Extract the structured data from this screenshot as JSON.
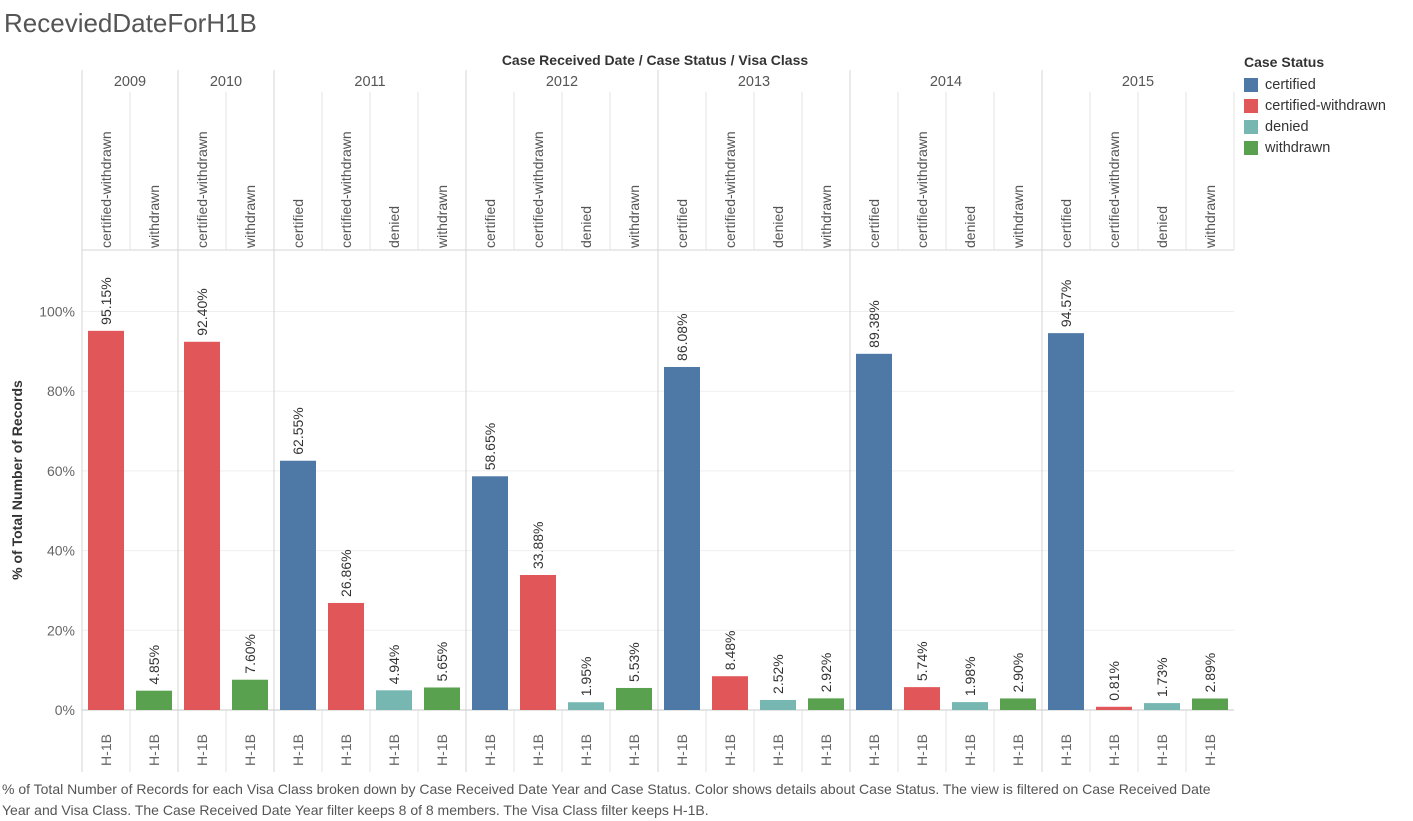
{
  "title": "ReceviedDateForH1B",
  "colors": {
    "certified": "#4e79a7",
    "certified-withdrawn": "#e15759",
    "denied": "#76b7b2",
    "withdrawn": "#59a14f"
  },
  "legend": {
    "title": "Case Status",
    "items": [
      {
        "label": "certified",
        "color": "#4e79a7"
      },
      {
        "label": "certified-withdrawn",
        "color": "#e15759"
      },
      {
        "label": "denied",
        "color": "#76b7b2"
      },
      {
        "label": "withdrawn",
        "color": "#59a14f"
      }
    ]
  },
  "caption": "% of Total Number of Records for each Visa Class broken down by Case Received Date Year and Case Status.  Color shows details about Case Status. The view is filtered on Case Received Date Year and Visa Class. The Case Received Date Year filter keeps 8 of 8 members. The Visa Class filter keeps H-1B.",
  "chart_data": {
    "type": "bar",
    "header_title": "Case Received Date  /  Case Status  /  Visa Class",
    "ylabel": "% of Total Number of Records",
    "ylim": [
      0,
      115
    ],
    "yticks": [
      0,
      20,
      40,
      60,
      80,
      100
    ],
    "ytick_labels": [
      "0%",
      "20%",
      "40%",
      "60%",
      "80%",
      "100%"
    ],
    "grid": true,
    "legend_position": "top-right",
    "groups": [
      {
        "year": "2009",
        "bars": [
          {
            "status": "certified-withdrawn",
            "visa": "H-1B",
            "value": 95.15,
            "label": "95.15%"
          },
          {
            "status": "withdrawn",
            "visa": "H-1B",
            "value": 4.85,
            "label": "4.85%"
          }
        ]
      },
      {
        "year": "2010",
        "bars": [
          {
            "status": "certified-withdrawn",
            "visa": "H-1B",
            "value": 92.4,
            "label": "92.40%"
          },
          {
            "status": "withdrawn",
            "visa": "H-1B",
            "value": 7.6,
            "label": "7.60%"
          }
        ]
      },
      {
        "year": "2011",
        "bars": [
          {
            "status": "certified",
            "visa": "H-1B",
            "value": 62.55,
            "label": "62.55%"
          },
          {
            "status": "certified-withdrawn",
            "visa": "H-1B",
            "value": 26.86,
            "label": "26.86%"
          },
          {
            "status": "denied",
            "visa": "H-1B",
            "value": 4.94,
            "label": "4.94%"
          },
          {
            "status": "withdrawn",
            "visa": "H-1B",
            "value": 5.65,
            "label": "5.65%"
          }
        ]
      },
      {
        "year": "2012",
        "bars": [
          {
            "status": "certified",
            "visa": "H-1B",
            "value": 58.65,
            "label": "58.65%"
          },
          {
            "status": "certified-withdrawn",
            "visa": "H-1B",
            "value": 33.88,
            "label": "33.88%"
          },
          {
            "status": "denied",
            "visa": "H-1B",
            "value": 1.95,
            "label": "1.95%"
          },
          {
            "status": "withdrawn",
            "visa": "H-1B",
            "value": 5.53,
            "label": "5.53%"
          }
        ]
      },
      {
        "year": "2013",
        "bars": [
          {
            "status": "certified",
            "visa": "H-1B",
            "value": 86.08,
            "label": "86.08%"
          },
          {
            "status": "certified-withdrawn",
            "visa": "H-1B",
            "value": 8.48,
            "label": "8.48%"
          },
          {
            "status": "denied",
            "visa": "H-1B",
            "value": 2.52,
            "label": "2.52%"
          },
          {
            "status": "withdrawn",
            "visa": "H-1B",
            "value": 2.92,
            "label": "2.92%"
          }
        ]
      },
      {
        "year": "2014",
        "bars": [
          {
            "status": "certified",
            "visa": "H-1B",
            "value": 89.38,
            "label": "89.38%"
          },
          {
            "status": "certified-withdrawn",
            "visa": "H-1B",
            "value": 5.74,
            "label": "5.74%"
          },
          {
            "status": "denied",
            "visa": "H-1B",
            "value": 1.98,
            "label": "1.98%"
          },
          {
            "status": "withdrawn",
            "visa": "H-1B",
            "value": 2.9,
            "label": "2.90%"
          }
        ]
      },
      {
        "year": "2015",
        "bars": [
          {
            "status": "certified",
            "visa": "H-1B",
            "value": 94.57,
            "label": "94.57%"
          },
          {
            "status": "certified-withdrawn",
            "visa": "H-1B",
            "value": 0.81,
            "label": "0.81%"
          },
          {
            "status": "denied",
            "visa": "H-1B",
            "value": 1.73,
            "label": "1.73%"
          },
          {
            "status": "withdrawn",
            "visa": "H-1B",
            "value": 2.89,
            "label": "2.89%"
          }
        ]
      }
    ]
  }
}
